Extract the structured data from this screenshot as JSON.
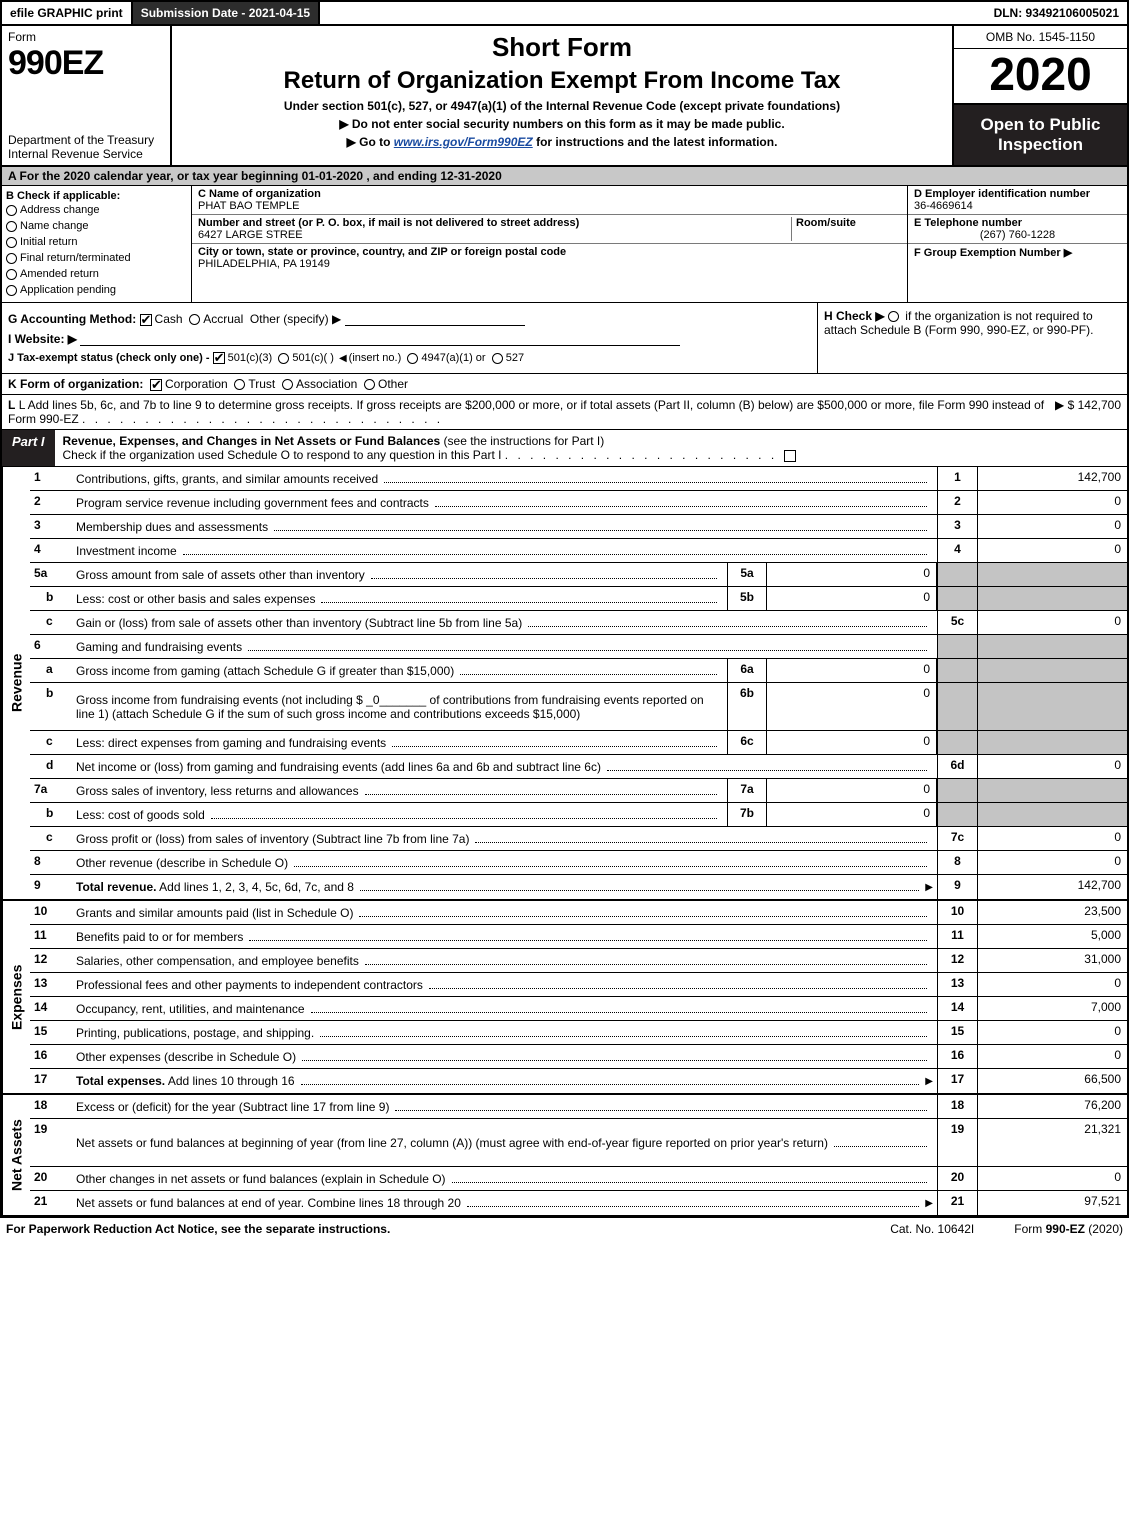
{
  "colors": {
    "dark": "#231f20",
    "grey_header": "#c8c8c8",
    "grey_cell": "#c4c4c4",
    "link": "#1a4ba0"
  },
  "topbar": {
    "efile": "efile GRAPHIC print",
    "submission": "Submission Date - 2021-04-15",
    "dln": "DLN: 93492106005021"
  },
  "header": {
    "form_word": "Form",
    "form_num": "990EZ",
    "dept1": "Department of the Treasury",
    "dept2": "Internal Revenue Service",
    "title_sm": "Short Form",
    "title_lg": "Return of Organization Exempt From Income Tax",
    "subtitle": "Under section 501(c), 527, or 4947(a)(1) of the Internal Revenue Code (except private foundations)",
    "note1_pre": "▶ Do not enter social security numbers on this form as it may be made public.",
    "note2_pre": "▶ Go to ",
    "note2_link": "www.irs.gov/Form990EZ",
    "note2_post": " for instructions and the latest information.",
    "omb": "OMB No. 1545-1150",
    "year": "2020",
    "open": "Open to Public Inspection"
  },
  "row_A": "A For the 2020 calendar year, or tax year beginning 01-01-2020 , and ending 12-31-2020",
  "boxB": {
    "hdr": "B  Check if applicable:",
    "opts": [
      "Address change",
      "Name change",
      "Initial return",
      "Final return/terminated",
      "Amended return",
      "Application pending"
    ]
  },
  "boxC": {
    "c_lbl": "C Name of organization",
    "c_val": "PHAT BAO TEMPLE",
    "addr_lbl": "Number and street (or P. O. box, if mail is not delivered to street address)",
    "addr_val": "6427 LARGE STREE",
    "room_lbl": "Room/suite",
    "city_lbl": "City or town, state or province, country, and ZIP or foreign postal code",
    "city_val": "PHILADELPHIA, PA  19149"
  },
  "boxD": {
    "d_lbl": "D Employer identification number",
    "d_val": "36-4669614",
    "e_lbl": "E Telephone number",
    "e_val": "(267) 760-1228",
    "f_lbl": "F Group Exemption Number  ▶"
  },
  "meta": {
    "G": "G Accounting Method:",
    "G_cash": "Cash",
    "G_accr": "Accrual",
    "G_other": "Other (specify) ▶",
    "I": "I Website: ▶",
    "J": "J Tax-exempt status (check only one) -",
    "J1": "501(c)(3)",
    "J2": "501(c)(  )",
    "J2b": "(insert no.)",
    "J3": "4947(a)(1) or",
    "J4": "527",
    "H": "H  Check ▶",
    "H2": "if the organization is not required to attach Schedule B (Form 990, 990-EZ, or 990-PF)."
  },
  "lineK": {
    "pre": "K Form of organization:",
    "opts": [
      "Corporation",
      "Trust",
      "Association",
      "Other"
    ]
  },
  "lineL": {
    "txt": "L Add lines 5b, 6c, and 7b to line 9 to determine gross receipts. If gross receipts are $200,000 or more, or if total assets (Part II, column (B) below) are $500,000 or more, file Form 990 instead of Form 990-EZ",
    "amt": "▶ $ 142,700"
  },
  "partI": {
    "tab": "Part I",
    "title": "Revenue, Expenses, and Changes in Net Assets or Fund Balances",
    "title2": "(see the instructions for Part I)",
    "check": "Check if the organization used Schedule O to respond to any question in this Part I",
    "endbox": "☐"
  },
  "v_labels": {
    "rev": "Revenue",
    "exp": "Expenses",
    "na": "Net Assets"
  },
  "rows_rev": [
    {
      "n": "1",
      "d": "Contributions, gifts, grants, and similar amounts received",
      "rn": "1",
      "rv": "142,700"
    },
    {
      "n": "2",
      "d": "Program service revenue including government fees and contracts",
      "rn": "2",
      "rv": "0"
    },
    {
      "n": "3",
      "d": "Membership dues and assessments",
      "rn": "3",
      "rv": "0"
    },
    {
      "n": "4",
      "d": "Investment income",
      "rn": "4",
      "rv": "0"
    },
    {
      "n": "5a",
      "d": "Gross amount from sale of assets other than inventory",
      "mn": "5a",
      "mv": "0",
      "shade": true
    },
    {
      "n": "b",
      "sub": true,
      "d": "Less: cost or other basis and sales expenses",
      "mn": "5b",
      "mv": "0",
      "shade": true
    },
    {
      "n": "c",
      "sub": true,
      "d": "Gain or (loss) from sale of assets other than inventory (Subtract line 5b from line 5a)",
      "rn": "5c",
      "rv": "0"
    },
    {
      "n": "6",
      "d": "Gaming and fundraising events",
      "shade": true,
      "noval": true
    },
    {
      "n": "a",
      "sub": true,
      "d": "Gross income from gaming (attach Schedule G if greater than $15,000)",
      "mn": "6a",
      "mv": "0",
      "shade": true
    },
    {
      "n": "b",
      "sub": true,
      "d": "Gross income from fundraising events (not including $ _0_______ of contributions from fundraising events reported on line 1) (attach Schedule G if the sum of such gross income and contributions exceeds $15,000)",
      "mn": "6b",
      "mv": "0",
      "shade": true,
      "tall": true
    },
    {
      "n": "c",
      "sub": true,
      "d": "Less: direct expenses from gaming and fundraising events",
      "mn": "6c",
      "mv": "0",
      "shade": true
    },
    {
      "n": "d",
      "sub": true,
      "d": "Net income or (loss) from gaming and fundraising events (add lines 6a and 6b and subtract line 6c)",
      "rn": "6d",
      "rv": "0"
    },
    {
      "n": "7a",
      "d": "Gross sales of inventory, less returns and allowances",
      "mn": "7a",
      "mv": "0",
      "shade": true
    },
    {
      "n": "b",
      "sub": true,
      "d": "Less: cost of goods sold",
      "mn": "7b",
      "mv": "0",
      "shade": true
    },
    {
      "n": "c",
      "sub": true,
      "d": "Gross profit or (loss) from sales of inventory (Subtract line 7b from line 7a)",
      "rn": "7c",
      "rv": "0"
    },
    {
      "n": "8",
      "d": "Other revenue (describe in Schedule O)",
      "rn": "8",
      "rv": "0"
    },
    {
      "n": "9",
      "d": "Total revenue. Add lines 1, 2, 3, 4, 5c, 6d, 7c, and 8",
      "rn": "9",
      "rv": "142,700",
      "bold": true,
      "arrow": true
    }
  ],
  "rows_exp": [
    {
      "n": "10",
      "d": "Grants and similar amounts paid (list in Schedule O)",
      "rn": "10",
      "rv": "23,500"
    },
    {
      "n": "11",
      "d": "Benefits paid to or for members",
      "rn": "11",
      "rv": "5,000"
    },
    {
      "n": "12",
      "d": "Salaries, other compensation, and employee benefits",
      "rn": "12",
      "rv": "31,000"
    },
    {
      "n": "13",
      "d": "Professional fees and other payments to independent contractors",
      "rn": "13",
      "rv": "0"
    },
    {
      "n": "14",
      "d": "Occupancy, rent, utilities, and maintenance",
      "rn": "14",
      "rv": "7,000"
    },
    {
      "n": "15",
      "d": "Printing, publications, postage, and shipping.",
      "rn": "15",
      "rv": "0"
    },
    {
      "n": "16",
      "d": "Other expenses (describe in Schedule O)",
      "rn": "16",
      "rv": "0"
    },
    {
      "n": "17",
      "d": "Total expenses. Add lines 10 through 16",
      "rn": "17",
      "rv": "66,500",
      "bold": true,
      "arrow": true
    }
  ],
  "rows_na": [
    {
      "n": "18",
      "d": "Excess or (deficit) for the year (Subtract line 17 from line 9)",
      "rn": "18",
      "rv": "76,200"
    },
    {
      "n": "19",
      "d": "Net assets or fund balances at beginning of year (from line 27, column (A)) (must agree with end-of-year figure reported on prior year's return)",
      "rn": "19",
      "rv": "21,321",
      "tall": true,
      "shade_top": true
    },
    {
      "n": "20",
      "d": "Other changes in net assets or fund balances (explain in Schedule O)",
      "rn": "20",
      "rv": "0"
    },
    {
      "n": "21",
      "d": "Net assets or fund balances at end of year. Combine lines 18 through 20",
      "rn": "21",
      "rv": "97,521",
      "arrow": true
    }
  ],
  "footer": {
    "left": "For Paperwork Reduction Act Notice, see the separate instructions.",
    "mid": "Cat. No. 10642I",
    "right_pre": "Form ",
    "right_b": "990-EZ",
    "right_post": " (2020)"
  }
}
